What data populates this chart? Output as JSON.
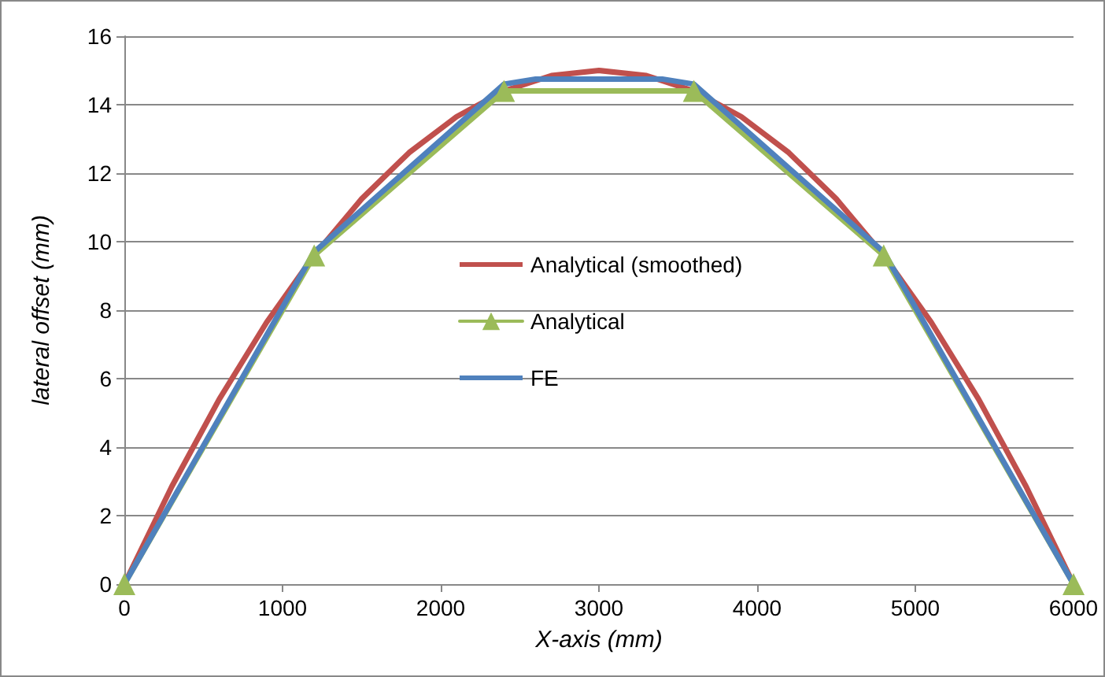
{
  "chart_data": {
    "type": "line",
    "xlabel": "X-axis (mm)",
    "ylabel": "lateral offset (mm)",
    "xlim": [
      0,
      6000
    ],
    "xticks": [
      0,
      1000,
      2000,
      3000,
      4000,
      5000,
      6000
    ],
    "ylim": [
      0,
      16
    ],
    "yticks": [
      0,
      2,
      4,
      6,
      8,
      10,
      12,
      14,
      16
    ],
    "grid": "y",
    "legend": "center",
    "line_style": "solid",
    "series": [
      {
        "name": "Analytical (smoothed)",
        "color": "#c0504d",
        "marker": "none",
        "x": [
          0,
          300,
          600,
          900,
          1200,
          1500,
          1800,
          2100,
          2400,
          2700,
          3000,
          3300,
          3600,
          3900,
          4200,
          4500,
          4800,
          5100,
          5400,
          5700,
          6000
        ],
        "values": [
          0,
          2.85,
          5.4,
          7.65,
          9.6,
          11.25,
          12.6,
          13.65,
          14.4,
          14.85,
          15,
          14.85,
          14.4,
          13.65,
          12.6,
          11.25,
          9.6,
          7.65,
          5.4,
          2.85,
          0
        ]
      },
      {
        "name": "Analytical",
        "color": "#9bbb59",
        "marker": "triangle",
        "x": [
          0,
          1200,
          2400,
          3600,
          4800,
          6000
        ],
        "values": [
          0,
          9.6,
          14.4,
          14.4,
          9.6,
          0
        ]
      },
      {
        "name": "FE",
        "color": "#4f81bd",
        "marker": "none",
        "x": [
          0,
          1200,
          2400,
          2600,
          3400,
          3600,
          4800,
          6000
        ],
        "values": [
          0,
          9.7,
          14.6,
          14.75,
          14.75,
          14.6,
          9.7,
          0
        ]
      }
    ]
  }
}
